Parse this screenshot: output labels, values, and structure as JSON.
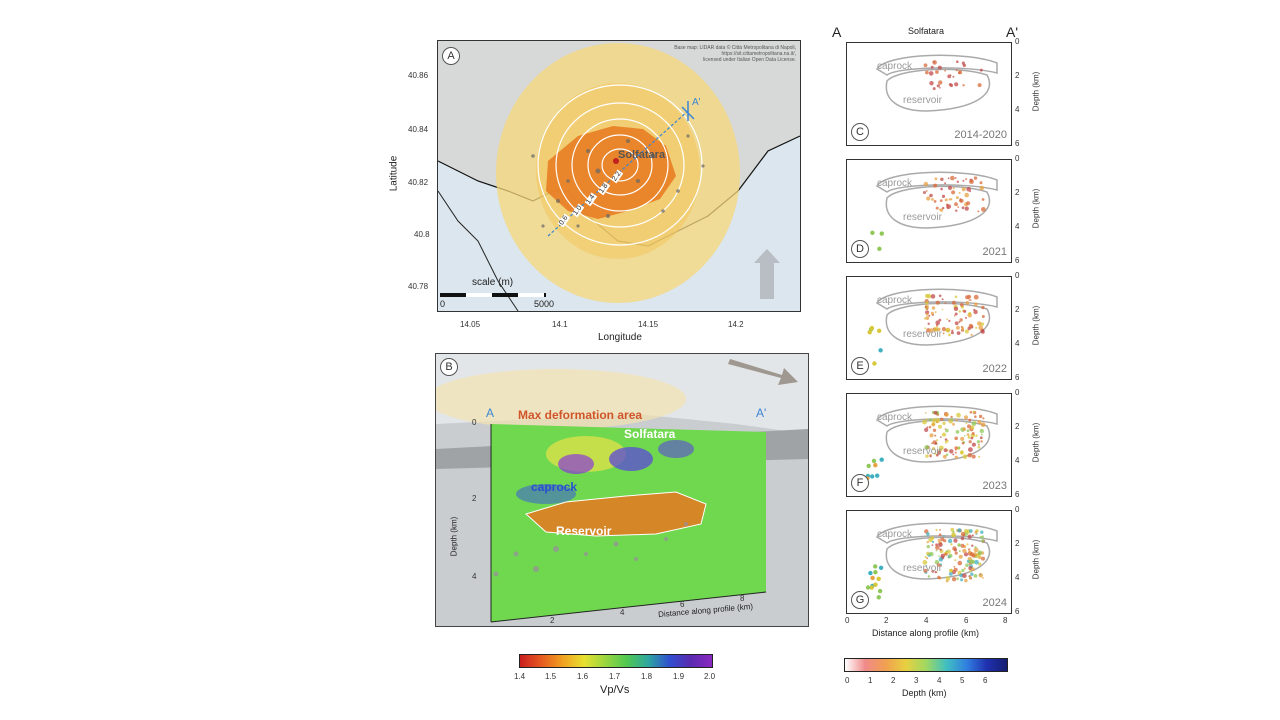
{
  "panelA": {
    "letter": "A",
    "credit_lines": [
      "Base map: LIDAR data © Città Metropolitana di Napoli,",
      "https://sit.cittametropolitana.na.it/,",
      "licensed under Italian Open Data License."
    ],
    "xlabel": "Longitude",
    "ylabel": "Latitude",
    "xticks": [
      "14.05",
      "14.1",
      "14.15",
      "14.2"
    ],
    "yticks": [
      "40.86",
      "40.84",
      "40.82",
      "40.8",
      "40.78"
    ],
    "scale_label": "scale (m)",
    "scale_min": "0",
    "scale_max": "5000",
    "place": "Solfatara",
    "a_prime": "A'",
    "contours": [
      "2.2",
      "1.8",
      "1.4",
      "1.0",
      "0.6"
    ]
  },
  "panelB": {
    "letter": "B",
    "label_a": "A",
    "label_a_prime": "A'",
    "max_def": "Max deformation area",
    "solfatara": "Solfatara",
    "caprock": "caprock",
    "reservoir": "Reservoir",
    "ylabel": "Depth (km)",
    "xlabel": "Distance along profile (km)",
    "yticks": [
      "0",
      "2",
      "4"
    ],
    "xticks": [
      "2",
      "4",
      "6",
      "8"
    ]
  },
  "vpvs_bar": {
    "label": "Vp/Vs",
    "ticks": [
      "1.4",
      "1.5",
      "1.6",
      "1.7",
      "1.8",
      "1.9",
      "2.0"
    ]
  },
  "sections": {
    "header_a": "A",
    "header_a_prime": "A'",
    "header_place": "Solfatara",
    "ylabel": "Depth (km)",
    "caprock": "caprock",
    "reservoir": "reservoir",
    "yticks": [
      "0",
      "2",
      "4",
      "6"
    ],
    "xticks": [
      "0",
      "2",
      "4",
      "6",
      "8"
    ],
    "xlabel": "Distance along profile (km)",
    "panels": [
      {
        "letter": "C",
        "period": "2014-2020"
      },
      {
        "letter": "D",
        "period": "2021"
      },
      {
        "letter": "E",
        "period": "2022"
      },
      {
        "letter": "F",
        "period": "2023"
      },
      {
        "letter": "G",
        "period": "2024"
      }
    ]
  },
  "depth_bar": {
    "label": "Depth (km)",
    "ticks": [
      "0",
      "1",
      "2",
      "3",
      "4",
      "5",
      "6"
    ]
  }
}
